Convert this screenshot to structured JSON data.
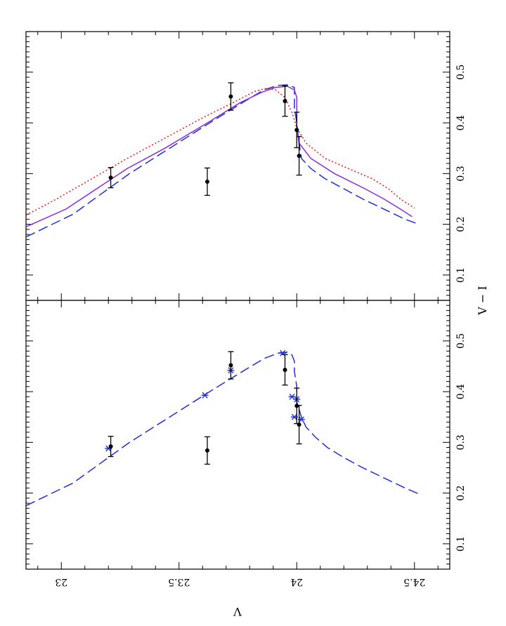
{
  "figure": {
    "xlabel": "V − I",
    "ylabel": "V",
    "rotated_label_note": ""
  },
  "colors": {
    "dashed_blue": "#1f2fd6",
    "solid_purple": "#8a2be2",
    "dotted_red": "#e8191c",
    "points": "#000000"
  },
  "chart_data": [
    {
      "type": "scatter",
      "panel": "top",
      "title": "",
      "xlabel": "V − I",
      "ylabel": "V",
      "xlim": [
        0.05,
        0.58
      ],
      "ylim": [
        24.65,
        22.85
      ],
      "x_ticks": [
        "0.1",
        "0.2",
        "0.3",
        "0.4",
        "0.5"
      ],
      "y_ticks": [
        "23",
        "23.5",
        "24",
        "24.5"
      ],
      "points": [
        {
          "vi": 0.292,
          "v": 23.21,
          "err_vi": 0.02
        },
        {
          "vi": 0.284,
          "v": 23.62,
          "err_vi": 0.027
        },
        {
          "vi": 0.452,
          "v": 23.72,
          "err_vi": 0.027
        },
        {
          "vi": 0.443,
          "v": 23.95,
          "err_vi": 0.03
        },
        {
          "vi": 0.386,
          "v": 24.0,
          "err_vi": 0.035
        },
        {
          "vi": 0.335,
          "v": 24.01,
          "err_vi": 0.038
        }
      ],
      "series": [
        {
          "style": "dashed",
          "color": "#1f2fd6",
          "vi": [
            0.175,
            0.22,
            0.26,
            0.3,
            0.35,
            0.4,
            0.44,
            0.465,
            0.474,
            0.475,
            0.47,
            0.455,
            0.43,
            0.4,
            0.36,
            0.33,
            0.31,
            0.29,
            0.27,
            0.25,
            0.23,
            0.21,
            0.2
          ],
          "v": [
            22.85,
            23.05,
            23.17,
            23.29,
            23.46,
            23.63,
            23.77,
            23.86,
            23.92,
            23.96,
            23.99,
            23.99,
            23.99,
            24.0,
            24.01,
            24.02,
            24.06,
            24.12,
            24.2,
            24.28,
            24.37,
            24.46,
            24.52
          ]
        },
        {
          "style": "solid",
          "color": "#8a2be2",
          "vi": [
            0.195,
            0.23,
            0.27,
            0.31,
            0.35,
            0.4,
            0.44,
            0.46,
            0.47,
            0.472,
            0.465,
            0.45,
            0.42,
            0.39,
            0.36,
            0.33,
            0.3,
            0.27,
            0.25,
            0.23,
            0.215
          ],
          "v": [
            22.85,
            23.02,
            23.15,
            23.28,
            23.44,
            23.62,
            23.76,
            23.85,
            23.91,
            23.96,
            23.99,
            24.0,
            24.0,
            24.0,
            24.01,
            24.06,
            24.16,
            24.29,
            24.37,
            24.44,
            24.49
          ]
        },
        {
          "style": "dotted",
          "color": "#e8191c",
          "vi": [
            0.218,
            0.25,
            0.29,
            0.33,
            0.37,
            0.41,
            0.44,
            0.462,
            0.468,
            0.465,
            0.45,
            0.42,
            0.39,
            0.36,
            0.33,
            0.31,
            0.29,
            0.27,
            0.25,
            0.232
          ],
          "v": [
            22.85,
            22.98,
            23.13,
            23.28,
            23.44,
            23.6,
            23.73,
            23.82,
            23.87,
            23.91,
            23.95,
            23.98,
            24.0,
            24.04,
            24.12,
            24.22,
            24.32,
            24.39,
            24.44,
            24.5
          ]
        }
      ]
    },
    {
      "type": "scatter",
      "panel": "bottom",
      "title": "",
      "xlabel": "V − I",
      "ylabel": "V",
      "xlim": [
        0.05,
        0.58
      ],
      "ylim": [
        24.65,
        22.85
      ],
      "x_ticks": [
        "0.1",
        "0.2",
        "0.3",
        "0.4",
        "0.5"
      ],
      "y_ticks": [
        "23",
        "23.5",
        "24",
        "24.5"
      ],
      "points": [
        {
          "vi": 0.292,
          "v": 23.21,
          "err_vi": 0.02
        },
        {
          "vi": 0.284,
          "v": 23.62,
          "err_vi": 0.027
        },
        {
          "vi": 0.452,
          "v": 23.72,
          "err_vi": 0.027
        },
        {
          "vi": 0.443,
          "v": 23.95,
          "err_vi": 0.03
        },
        {
          "vi": 0.372,
          "v": 24.0,
          "err_vi": 0.035
        },
        {
          "vi": 0.335,
          "v": 24.01,
          "err_vi": 0.038
        }
      ],
      "markers": [
        {
          "vi": 0.288,
          "v": 23.2
        },
        {
          "vi": 0.393,
          "v": 23.61
        },
        {
          "vi": 0.442,
          "v": 23.72
        },
        {
          "vi": 0.476,
          "v": 23.94
        },
        {
          "vi": 0.39,
          "v": 23.98
        },
        {
          "vi": 0.385,
          "v": 24.0
        },
        {
          "vi": 0.35,
          "v": 23.99
        },
        {
          "vi": 0.345,
          "v": 24.02
        }
      ],
      "series": [
        {
          "style": "dashed",
          "color": "#1f2fd6",
          "vi": [
            0.175,
            0.22,
            0.26,
            0.3,
            0.35,
            0.4,
            0.44,
            0.465,
            0.476,
            0.478,
            0.472,
            0.46,
            0.44,
            0.41,
            0.38,
            0.35,
            0.33,
            0.31,
            0.29,
            0.27,
            0.25,
            0.23,
            0.21,
            0.198
          ],
          "v": [
            22.85,
            23.05,
            23.17,
            23.29,
            23.46,
            23.63,
            23.77,
            23.86,
            23.92,
            23.96,
            23.98,
            23.99,
            23.99,
            24.0,
            24.0,
            24.02,
            24.04,
            24.08,
            24.13,
            24.2,
            24.28,
            24.37,
            24.46,
            24.52
          ]
        }
      ]
    }
  ]
}
